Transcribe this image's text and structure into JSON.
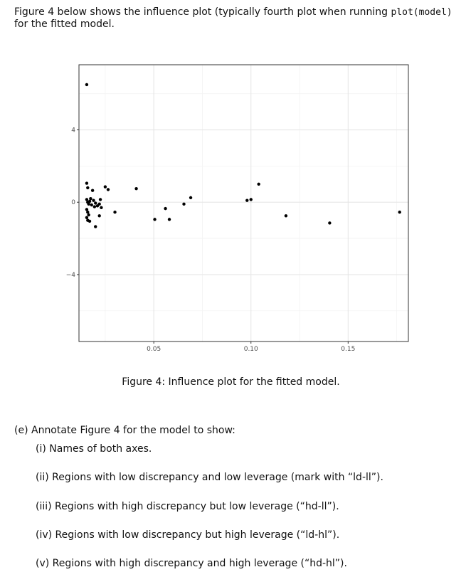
{
  "intro": {
    "text_before": "Figure 4 below shows the influence plot (typically fourth plot when running ",
    "code": "plot(model)",
    "text_after": "for the fitted model."
  },
  "chart_data": {
    "type": "scatter",
    "title": "",
    "xlabel": "",
    "ylabel": "",
    "xlim": [
      0.0115,
      0.181
    ],
    "ylim": [
      -7.7,
      7.6
    ],
    "x_ticks": [
      0.05,
      0.1,
      0.15
    ],
    "x_tick_labels": [
      "0.05",
      "0.10",
      "0.15"
    ],
    "y_ticks": [
      -4,
      0,
      4
    ],
    "y_tick_labels": [
      "−4",
      "0",
      "4"
    ],
    "grid": true,
    "points": [
      {
        "x": 0.0155,
        "y": 6.5
      },
      {
        "x": 0.0155,
        "y": 1.05
      },
      {
        "x": 0.016,
        "y": 0.8
      },
      {
        "x": 0.0155,
        "y": 0.15
      },
      {
        "x": 0.016,
        "y": 0.0
      },
      {
        "x": 0.0165,
        "y": -0.1
      },
      {
        "x": 0.017,
        "y": 0.05
      },
      {
        "x": 0.018,
        "y": -0.15
      },
      {
        "x": 0.0175,
        "y": 0.2
      },
      {
        "x": 0.019,
        "y": 0.1
      },
      {
        "x": 0.02,
        "y": -0.05
      },
      {
        "x": 0.021,
        "y": -0.2
      },
      {
        "x": 0.0195,
        "y": -0.25
      },
      {
        "x": 0.0185,
        "y": 0.65
      },
      {
        "x": 0.022,
        "y": -0.1
      },
      {
        "x": 0.023,
        "y": -0.3
      },
      {
        "x": 0.0225,
        "y": 0.15
      },
      {
        "x": 0.0155,
        "y": -0.4
      },
      {
        "x": 0.016,
        "y": -0.55
      },
      {
        "x": 0.0165,
        "y": -0.7
      },
      {
        "x": 0.0155,
        "y": -0.85
      },
      {
        "x": 0.016,
        "y": -1.0
      },
      {
        "x": 0.017,
        "y": -1.05
      },
      {
        "x": 0.02,
        "y": -1.35
      },
      {
        "x": 0.022,
        "y": -0.75
      },
      {
        "x": 0.025,
        "y": 0.85
      },
      {
        "x": 0.0265,
        "y": 0.7
      },
      {
        "x": 0.03,
        "y": -0.55
      },
      {
        "x": 0.041,
        "y": 0.75
      },
      {
        "x": 0.0505,
        "y": -0.95
      },
      {
        "x": 0.056,
        "y": -0.35
      },
      {
        "x": 0.058,
        "y": -0.95
      },
      {
        "x": 0.0655,
        "y": -0.1
      },
      {
        "x": 0.069,
        "y": 0.25
      },
      {
        "x": 0.098,
        "y": 0.1
      },
      {
        "x": 0.1,
        "y": 0.15
      },
      {
        "x": 0.104,
        "y": 1.0
      },
      {
        "x": 0.118,
        "y": -0.75
      },
      {
        "x": 0.1405,
        "y": -1.15
      },
      {
        "x": 0.1765,
        "y": -0.55
      }
    ]
  },
  "caption": "Figure 4: Influence plot for the fitted model.",
  "question": {
    "head": "(e)  Annotate Figure 4 for the model to show:",
    "items": [
      "(i)  Names of both axes.",
      "(ii)  Regions with low discrepancy and low leverage (mark with “ld-ll”).",
      "(iii)  Regions with high discrepancy but low leverage (“hd-ll”).",
      "(iv)  Regions with low discrepancy but high leverage (“ld-hl”).",
      "(v)  Regions with high discrepancy and high leverage (“hd-hl”)."
    ]
  }
}
